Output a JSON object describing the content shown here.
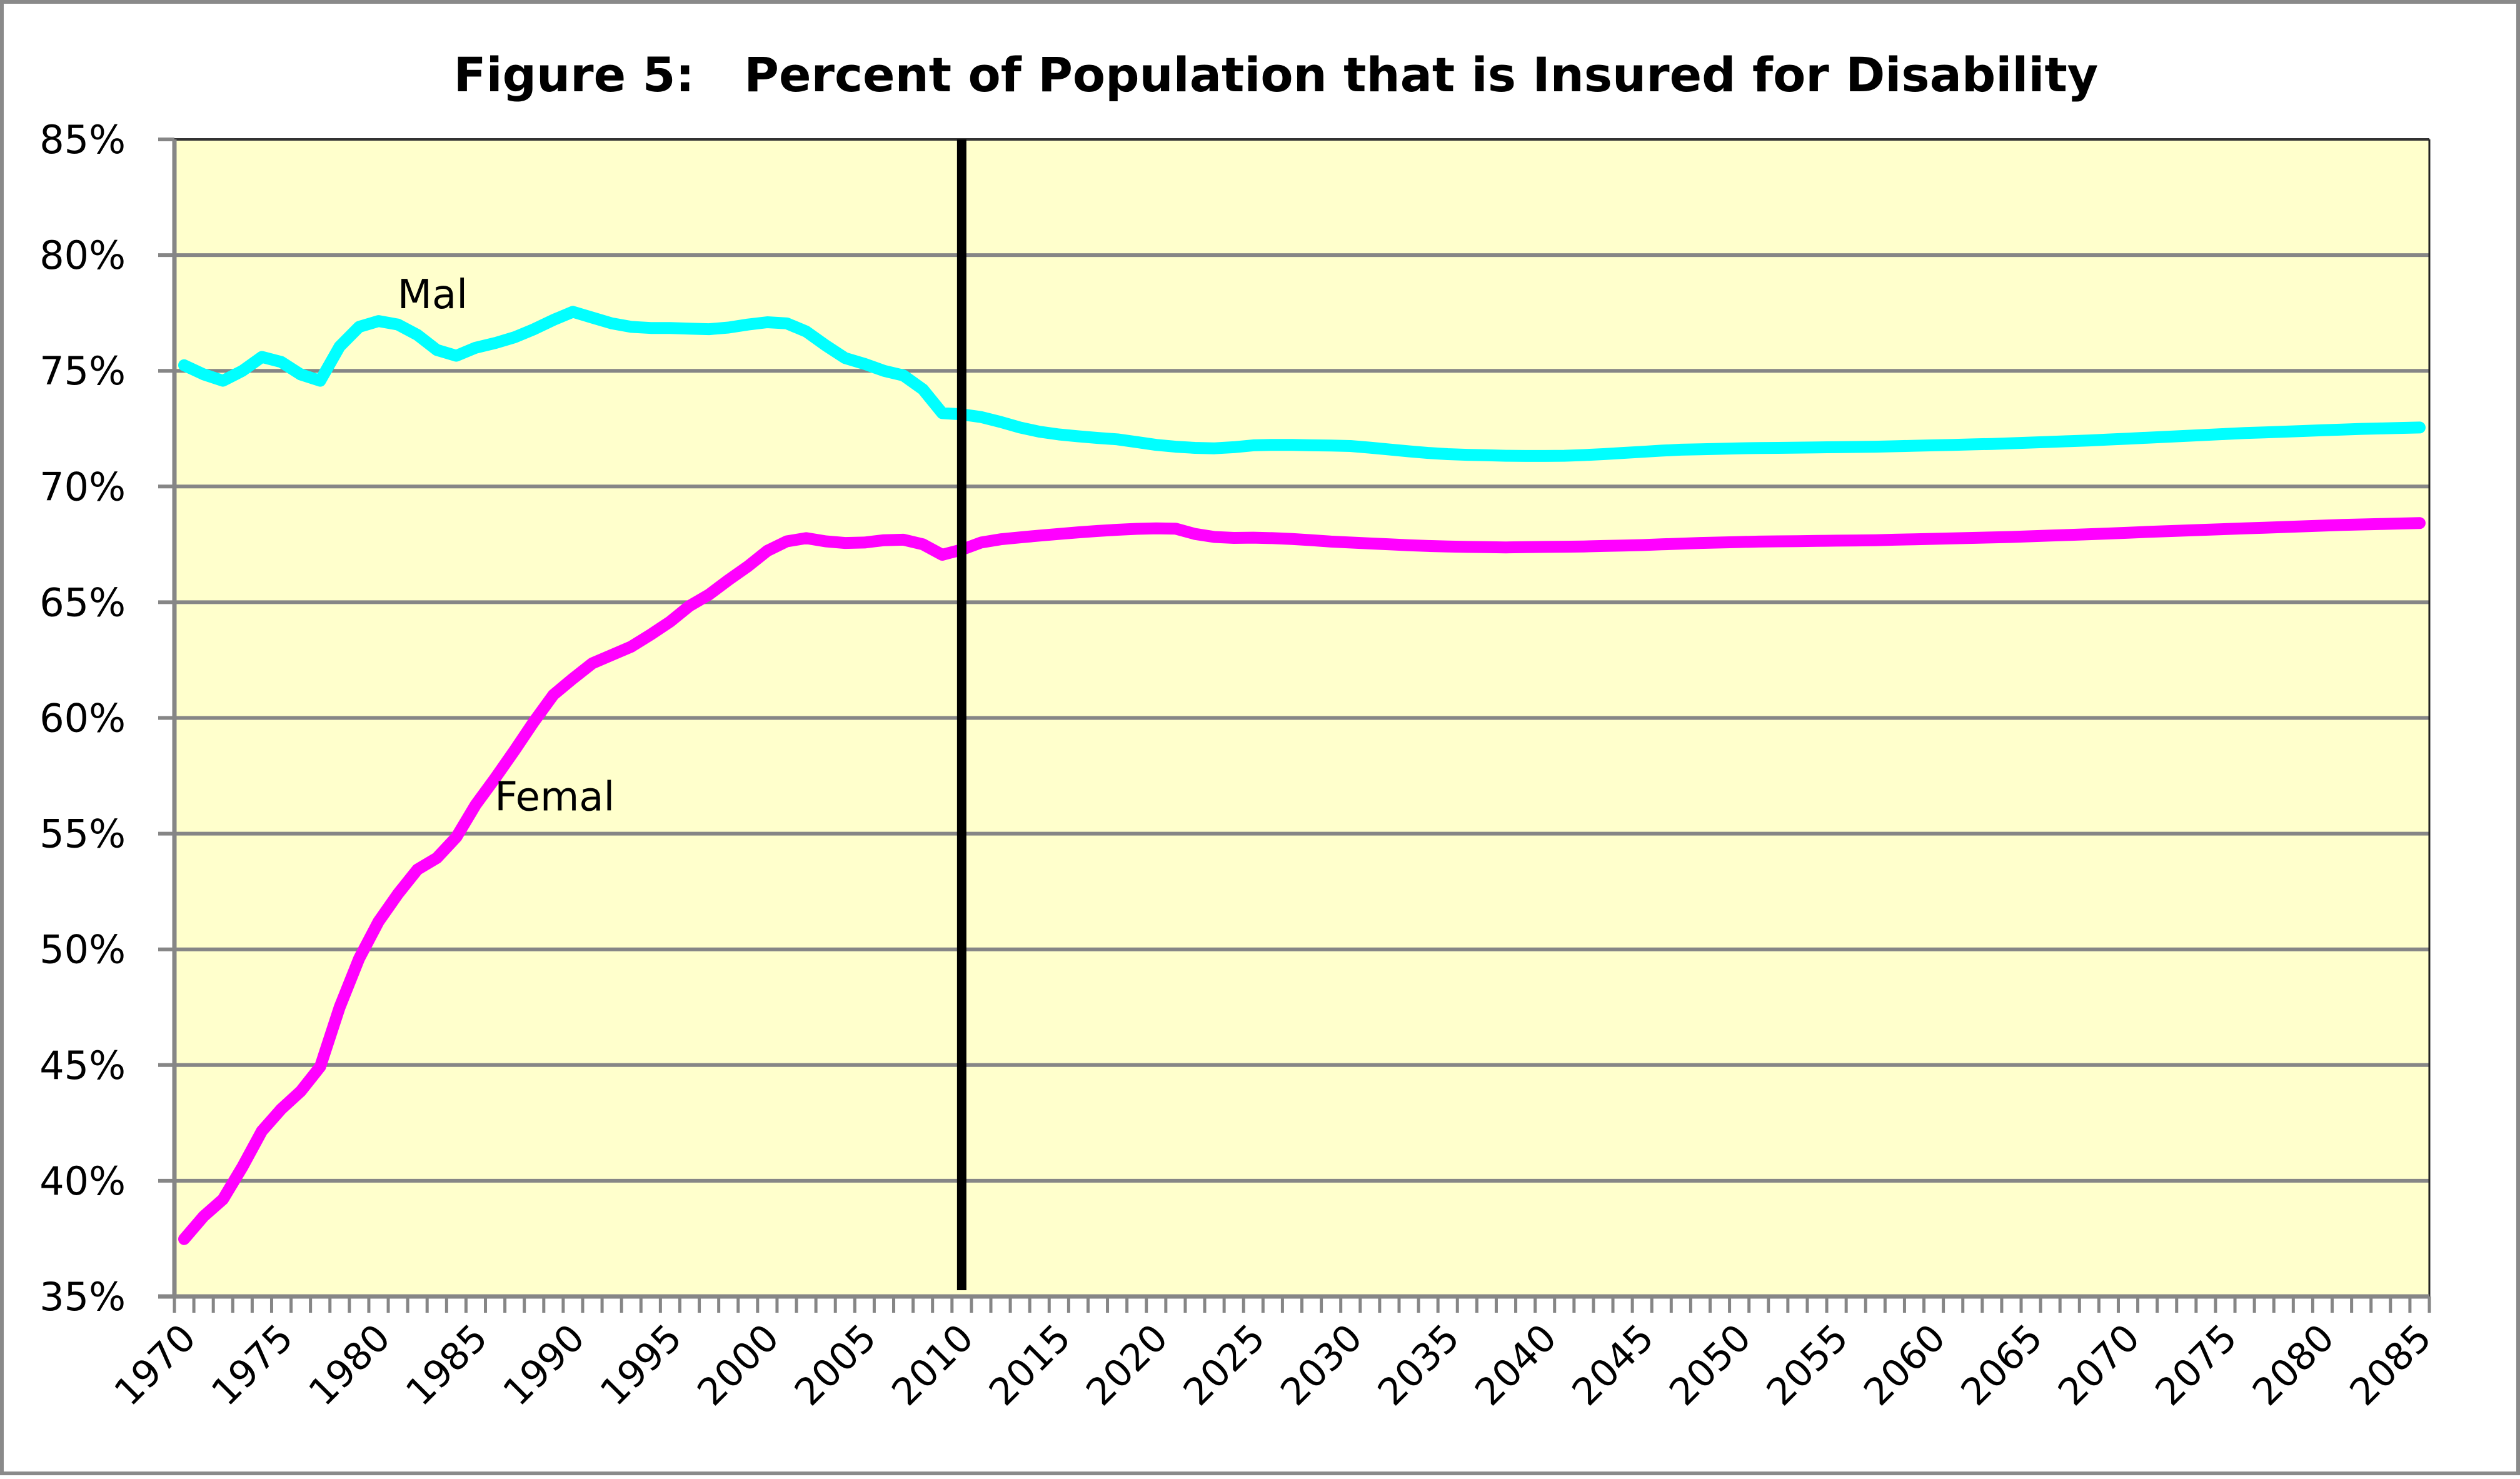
{
  "chart_data": {
    "type": "line",
    "title": "Figure 5:   Percent of Population that is Insured for Disability",
    "xlabel": "",
    "ylabel": "",
    "x_start": 1970,
    "x_end": 2085,
    "x_tick_labels": [
      "1970",
      "1975",
      "1980",
      "1985",
      "1990",
      "1995",
      "2000",
      "2005",
      "2010",
      "2015",
      "2020",
      "2025",
      "2030",
      "2035",
      "2040",
      "2045",
      "2050",
      "2055",
      "2060",
      "2065",
      "2070",
      "2075",
      "2080",
      "2085"
    ],
    "y_tick_labels": [
      "35%",
      "40%",
      "45%",
      "50%",
      "55%",
      "60%",
      "65%",
      "70%",
      "75%",
      "80%",
      "85%"
    ],
    "ylim": [
      35,
      85
    ],
    "y_step": 5,
    "y_unit": "%",
    "grid": true,
    "plot_background": "#FFFFCC",
    "vertical_marker": {
      "x": 2010,
      "color": "#000000",
      "meaning": "boundary between historical and projected values"
    },
    "annotations": [
      {
        "text": "Mal",
        "series": "Male",
        "anchor_x": 1983,
        "anchor_y": 78.3
      },
      {
        "text": "Femal",
        "series": "Female",
        "anchor_x": 1988,
        "anchor_y": 56.6
      }
    ],
    "series": [
      {
        "name": "Male",
        "label": "Mal",
        "color": "#00FFFF",
        "values": [
          75.24,
          74.85,
          74.57,
          75.0,
          75.6,
          75.38,
          74.84,
          74.57,
          76.05,
          76.9,
          77.15,
          77.0,
          76.55,
          75.9,
          75.65,
          76.0,
          76.2,
          76.45,
          76.8,
          77.2,
          77.55,
          77.3,
          77.05,
          76.9,
          76.85,
          76.85,
          76.82,
          76.8,
          76.87,
          77.0,
          77.1,
          77.05,
          76.7,
          76.1,
          75.55,
          75.3,
          75.0,
          74.8,
          74.2,
          73.17,
          73.12,
          73.0,
          72.79,
          72.55,
          72.37,
          72.25,
          72.17,
          72.1,
          72.04,
          71.92,
          71.8,
          71.72,
          71.67,
          71.65,
          71.7,
          71.78,
          71.8,
          71.8,
          71.78,
          71.77,
          71.75,
          71.68,
          71.6,
          71.52,
          71.45,
          71.4,
          71.37,
          71.35,
          71.33,
          71.32,
          71.32,
          71.33,
          71.36,
          71.4,
          71.45,
          71.5,
          71.55,
          71.59,
          71.61,
          71.63,
          71.65,
          71.66,
          71.67,
          71.68,
          71.69,
          71.7,
          71.71,
          71.72,
          71.74,
          71.76,
          71.78,
          71.8,
          71.82,
          71.84,
          71.87,
          71.9,
          71.93,
          71.96,
          71.99,
          72.03,
          72.07,
          72.11,
          72.15,
          72.19,
          72.23,
          72.27,
          72.31,
          72.34,
          72.37,
          72.4,
          72.43,
          72.46,
          72.49,
          72.51,
          72.53,
          72.55
        ]
      },
      {
        "name": "Female",
        "label": "Femal",
        "color": "#FF00FF",
        "values": [
          37.48,
          38.46,
          39.2,
          40.6,
          42.15,
          43.1,
          43.87,
          44.93,
          47.5,
          49.6,
          51.2,
          52.4,
          53.45,
          53.95,
          54.85,
          56.25,
          57.4,
          58.6,
          59.85,
          61.0,
          61.7,
          62.36,
          62.72,
          63.08,
          63.6,
          64.16,
          64.84,
          65.33,
          65.96,
          66.55,
          67.22,
          67.63,
          67.77,
          67.63,
          67.56,
          67.58,
          67.68,
          67.7,
          67.5,
          67.05,
          67.27,
          67.58,
          67.72,
          67.8,
          67.88,
          67.95,
          68.02,
          68.08,
          68.13,
          68.17,
          68.19,
          68.18,
          67.95,
          67.82,
          67.78,
          67.79,
          67.77,
          67.73,
          67.68,
          67.62,
          67.58,
          67.54,
          67.5,
          67.46,
          67.43,
          67.41,
          67.39,
          67.38,
          67.37,
          67.38,
          67.39,
          67.4,
          67.41,
          67.43,
          67.45,
          67.47,
          67.5,
          67.53,
          67.56,
          67.58,
          67.6,
          67.62,
          67.63,
          67.64,
          67.65,
          67.66,
          67.67,
          67.68,
          67.7,
          67.72,
          67.74,
          67.76,
          67.78,
          67.8,
          67.82,
          67.85,
          67.88,
          67.91,
          67.94,
          67.97,
          68.0,
          68.04,
          68.07,
          68.1,
          68.13,
          68.16,
          68.19,
          68.22,
          68.25,
          68.28,
          68.31,
          68.34,
          68.36,
          68.38,
          68.4,
          68.42
        ]
      }
    ]
  }
}
